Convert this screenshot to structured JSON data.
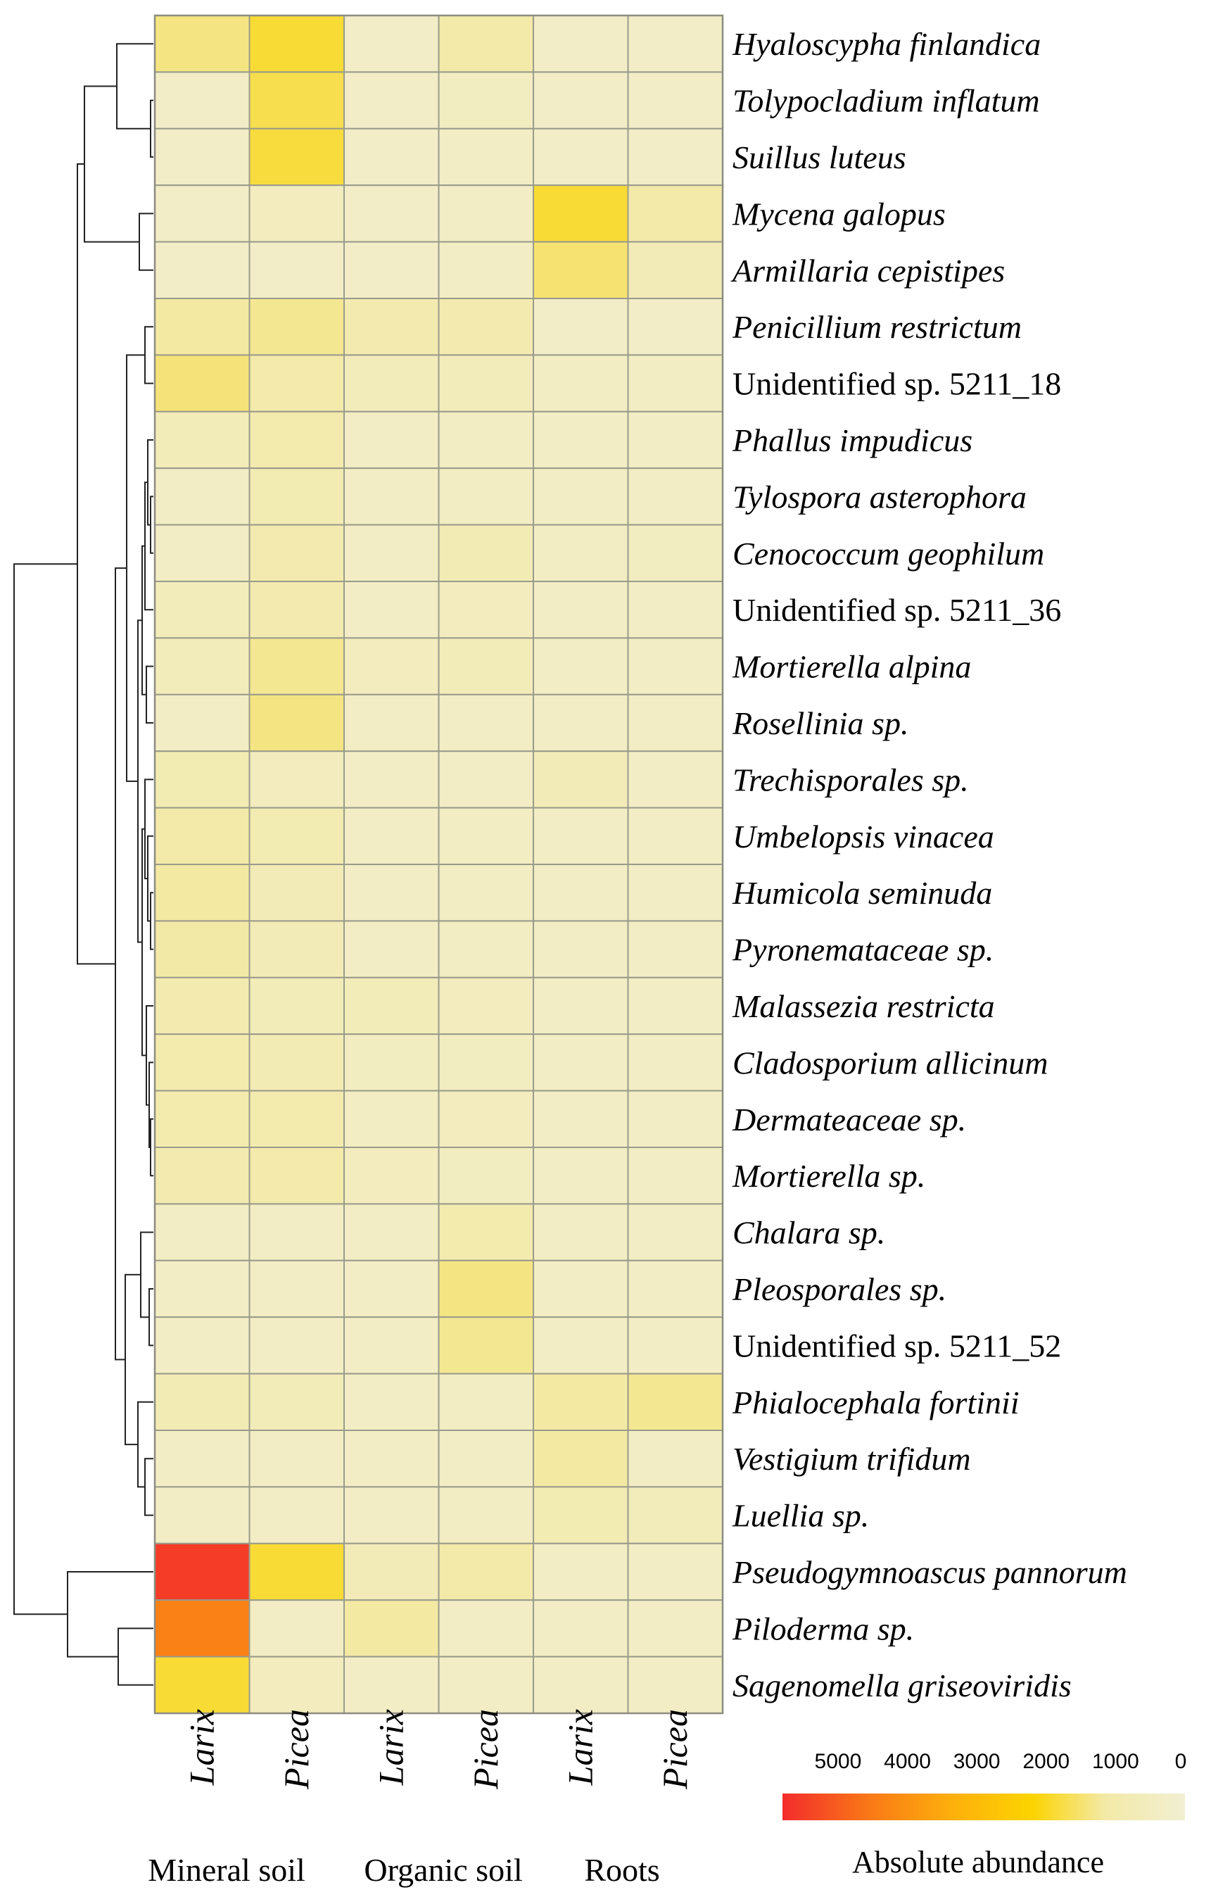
{
  "chart_data": {
    "type": "heatmap",
    "title": "",
    "columns": [
      {
        "label": "Larix",
        "group": "Mineral soil"
      },
      {
        "label": "Picea",
        "group": "Mineral soil"
      },
      {
        "label": "Larix",
        "group": "Organic soil"
      },
      {
        "label": "Picea",
        "group": "Organic soil"
      },
      {
        "label": "Larix",
        "group": "Roots"
      },
      {
        "label": "Picea",
        "group": "Roots"
      }
    ],
    "groups": [
      "Mineral soil",
      "Organic soil",
      "Roots"
    ],
    "rows": [
      {
        "name": "Hyaloscypha finlandica",
        "italic": true,
        "values": [
          1400,
          2300,
          250,
          900,
          250,
          250
        ]
      },
      {
        "name": "Tolypocladium inflatum",
        "italic": true,
        "values": [
          250,
          2000,
          250,
          400,
          250,
          250
        ]
      },
      {
        "name": "Suillus luteus",
        "italic": true,
        "values": [
          250,
          2200,
          250,
          300,
          250,
          250
        ]
      },
      {
        "name": "Mycena galopus",
        "italic": true,
        "values": [
          250,
          450,
          250,
          300,
          2300,
          900
        ]
      },
      {
        "name": "Armillaria cepistipes",
        "italic": true,
        "values": [
          250,
          250,
          250,
          300,
          1600,
          600
        ]
      },
      {
        "name": "Penicillium restrictum",
        "italic": true,
        "values": [
          1000,
          1200,
          750,
          750,
          250,
          250
        ]
      },
      {
        "name": "Unidentified sp. 5211_18",
        "italic": false,
        "values": [
          1500,
          850,
          500,
          500,
          350,
          350
        ]
      },
      {
        "name": "Phallus impudicus",
        "italic": true,
        "values": [
          550,
          800,
          300,
          350,
          300,
          300
        ]
      },
      {
        "name": "Tylospora asterophora",
        "italic": true,
        "values": [
          300,
          700,
          300,
          350,
          300,
          300
        ]
      },
      {
        "name": "Cenococcum geophilum",
        "italic": true,
        "values": [
          300,
          750,
          300,
          650,
          350,
          400
        ]
      },
      {
        "name": "Unidentified sp. 5211_36",
        "italic": false,
        "values": [
          500,
          750,
          300,
          450,
          300,
          300
        ]
      },
      {
        "name": "Mortierella alpina",
        "italic": true,
        "values": [
          500,
          1200,
          450,
          550,
          300,
          300
        ]
      },
      {
        "name": "Rosellinia sp.",
        "italic": true,
        "values": [
          300,
          1400,
          300,
          300,
          300,
          300
        ]
      },
      {
        "name": "Trechisporales sp.",
        "italic": true,
        "values": [
          700,
          450,
          300,
          300,
          600,
          300
        ]
      },
      {
        "name": "Umbelopsis vinacea",
        "italic": true,
        "values": [
          900,
          700,
          300,
          350,
          300,
          300
        ]
      },
      {
        "name": "Humicola seminuda",
        "italic": true,
        "values": [
          1000,
          600,
          300,
          350,
          300,
          300
        ]
      },
      {
        "name": "Pyronemataceae sp.",
        "italic": true,
        "values": [
          950,
          600,
          300,
          350,
          300,
          300
        ]
      },
      {
        "name": "Malassezia restricta",
        "italic": true,
        "values": [
          750,
          550,
          550,
          450,
          300,
          300
        ]
      },
      {
        "name": "Cladosporium allicinum",
        "italic": true,
        "values": [
          800,
          650,
          400,
          400,
          300,
          300
        ]
      },
      {
        "name": "Dermateaceae sp.",
        "italic": true,
        "values": [
          800,
          800,
          350,
          450,
          300,
          300
        ]
      },
      {
        "name": "Mortierella sp.",
        "italic": true,
        "values": [
          750,
          850,
          450,
          400,
          300,
          300
        ]
      },
      {
        "name": "Chalara sp.",
        "italic": true,
        "values": [
          300,
          300,
          300,
          800,
          300,
          300
        ]
      },
      {
        "name": "Pleosporales sp.",
        "italic": true,
        "values": [
          300,
          300,
          300,
          1400,
          300,
          300
        ]
      },
      {
        "name": "Unidentified sp. 5211_52",
        "italic": false,
        "values": [
          300,
          300,
          300,
          1200,
          300,
          300
        ]
      },
      {
        "name": "Phialocephala fortinii",
        "italic": true,
        "values": [
          650,
          550,
          300,
          350,
          1000,
          1200
        ]
      },
      {
        "name": "Vestigium trifidum",
        "italic": true,
        "values": [
          300,
          300,
          300,
          300,
          1000,
          300
        ]
      },
      {
        "name": "Luellia sp.",
        "italic": true,
        "values": [
          300,
          300,
          300,
          350,
          700,
          500
        ]
      },
      {
        "name": "Pseudogymnoascus pannorum",
        "italic": true,
        "values": [
          5600,
          2300,
          600,
          900,
          300,
          300
        ]
      },
      {
        "name": "Piloderma sp.",
        "italic": true,
        "values": [
          4700,
          300,
          1000,
          300,
          300,
          300
        ]
      },
      {
        "name": "Sagenomella griseoviridis",
        "italic": true,
        "values": [
          2300,
          450,
          300,
          300,
          300,
          300
        ]
      }
    ],
    "legend": {
      "title": "Absolute abundance",
      "ticks": [
        "5000",
        "4000",
        "3000",
        "2000",
        "1000",
        "0"
      ],
      "tick_values": [
        5000,
        4000,
        3000,
        2000,
        1000,
        0
      ],
      "range": [
        0,
        5800
      ],
      "colors": [
        "#f1efd2",
        "#f3e9a6",
        "#f7df55",
        "#fcd400",
        "#fdaf0c",
        "#f97a16",
        "#f32c2c"
      ]
    },
    "dendrogram": "hierarchical clustering of rows (left side)"
  }
}
